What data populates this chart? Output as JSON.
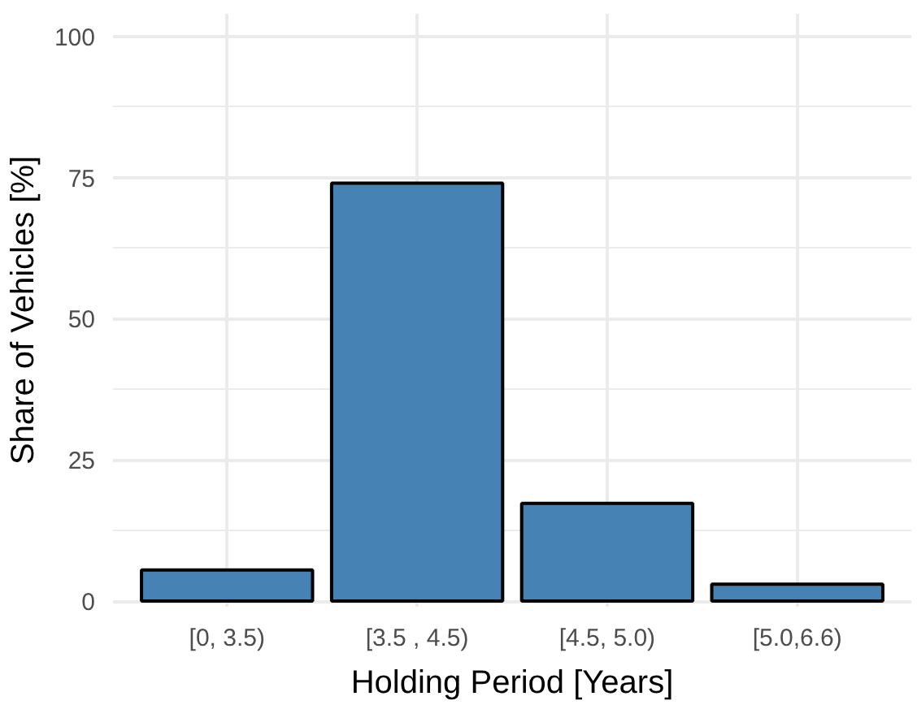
{
  "chart_data": {
    "type": "bar",
    "xlabel": "Holding Period [Years]",
    "ylabel": "Share of Vehicles [%]",
    "categories": [
      "[0, 3.5)",
      "[3.5 , 4.5)",
      "[4.5, 5.0)",
      "[5.0,6.6)"
    ],
    "values": [
      5.5,
      74,
      17.3,
      3
    ],
    "color": "#4682b4",
    "ylim": [
      -1,
      104
    ],
    "yticks": [
      0,
      25,
      50,
      75,
      100
    ],
    "grid": true
  }
}
